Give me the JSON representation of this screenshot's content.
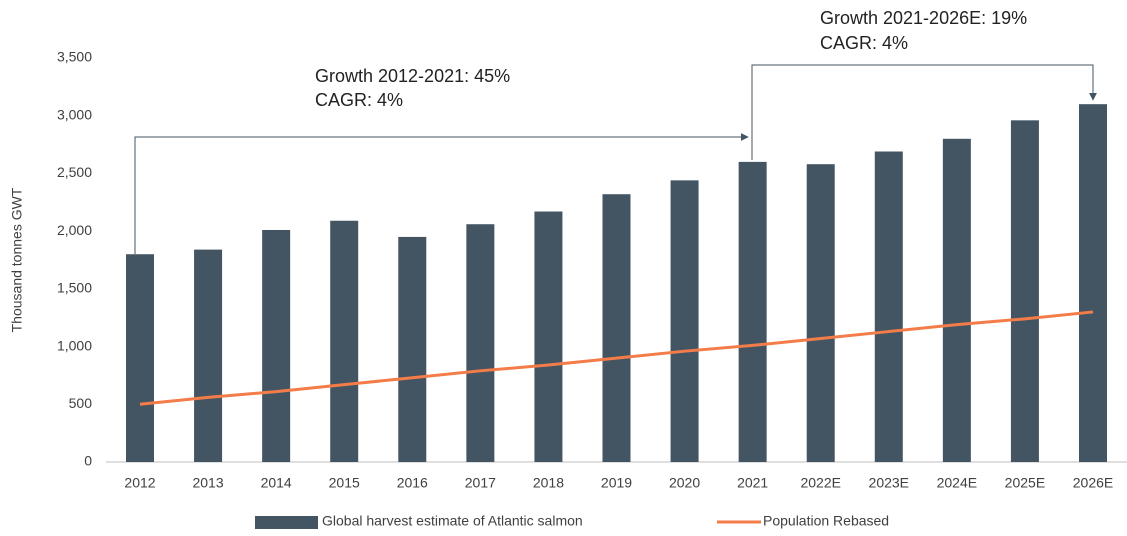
{
  "chart_data": {
    "type": "bar",
    "y_label": "Thousand tonnes GWT",
    "categories": [
      "2012",
      "2013",
      "2014",
      "2015",
      "2016",
      "2017",
      "2018",
      "2019",
      "2020",
      "2021",
      "2022E",
      "2023E",
      "2024E",
      "2025E",
      "2026E"
    ],
    "series": [
      {
        "name": "Global harvest estimate of Atlantic salmon",
        "type": "bar",
        "color": "#435563",
        "values": [
          1800,
          1840,
          2010,
          2090,
          1950,
          2060,
          2170,
          2320,
          2440,
          2600,
          2580,
          2690,
          2800,
          2960,
          3100
        ]
      },
      {
        "name": "Population Rebased",
        "type": "line",
        "color": "#f47c48",
        "values": [
          500,
          560,
          610,
          670,
          730,
          790,
          840,
          900,
          960,
          1010,
          1070,
          1130,
          1190,
          1240,
          1300
        ]
      }
    ],
    "ylim": [
      0,
      3500
    ],
    "yticks": [
      0,
      500,
      {
        "value": 1000,
        "label": "1,000"
      },
      {
        "value": 1500,
        "label": "1,500"
      },
      {
        "value": 2000,
        "label": "2,000"
      },
      {
        "value": 2500,
        "label": "2,500"
      },
      {
        "value": 3000,
        "label": "3,000"
      },
      {
        "value": 3500,
        "label": "3,500"
      }
    ],
    "annotations": [
      {
        "lines": [
          "Growth 2012-2021: 45%",
          "CAGR: 4%"
        ]
      },
      {
        "lines": [
          "Growth 2021-2026E: 19%",
          "CAGR: 4%"
        ]
      }
    ],
    "legend": "bottom"
  }
}
